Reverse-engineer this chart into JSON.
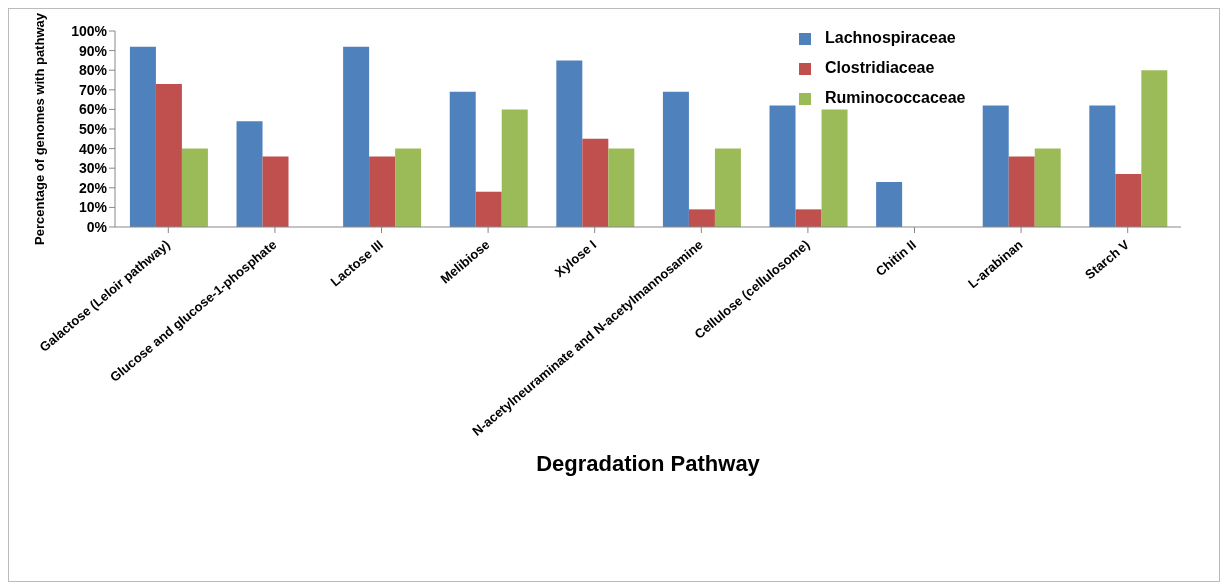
{
  "chart_data": {
    "type": "bar",
    "xlabel": "Degradation Pathway",
    "ylabel": "Percentage of genomes with pathway",
    "categories": [
      "Galactose (Leloir pathway)",
      "Glucose and glucose-1-phosphate",
      "Lactose III",
      "Melibiose",
      "Xylose I",
      "N-acetylneuraminate and N-acetylmannosamine",
      "Cellulose (cellulosome)",
      "Chitin II",
      "L-arabinan",
      "Starch V"
    ],
    "series": [
      {
        "name": "Lachnospiraceae",
        "color": "#4f81bd",
        "values": [
          92,
          54,
          92,
          69,
          85,
          69,
          62,
          23,
          62,
          62
        ]
      },
      {
        "name": "Clostridiaceae",
        "color": "#c0504d",
        "values": [
          73,
          36,
          36,
          18,
          45,
          9,
          9,
          0,
          36,
          27
        ]
      },
      {
        "name": "Ruminococcaceae",
        "color": "#9bbb59",
        "values": [
          40,
          0,
          40,
          60,
          40,
          40,
          60,
          0,
          40,
          80
        ]
      }
    ],
    "ylim": [
      0,
      100
    ],
    "yticks": [
      {
        "value": 0,
        "label": "0%"
      },
      {
        "value": 10,
        "label": "10%"
      },
      {
        "value": 20,
        "label": "20%"
      },
      {
        "value": 30,
        "label": "30%"
      },
      {
        "value": 40,
        "label": "40%"
      },
      {
        "value": 50,
        "label": "50%"
      },
      {
        "value": 60,
        "label": "60%"
      },
      {
        "value": 70,
        "label": "70%"
      },
      {
        "value": 80,
        "label": "80%"
      },
      {
        "value": 90,
        "label": "90%"
      },
      {
        "value": 100,
        "label": "100%"
      }
    ],
    "grid": false,
    "legend": "top right"
  }
}
